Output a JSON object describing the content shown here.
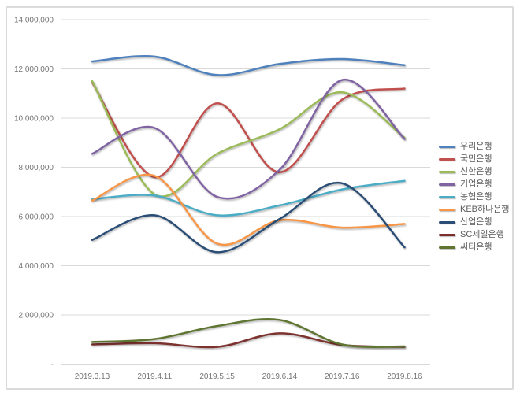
{
  "frame": {
    "border_color": "#dbdbdb",
    "background": "#ffffff"
  },
  "chart_data": {
    "type": "line",
    "smooth": true,
    "grid": true,
    "legend_position": "right",
    "x_labels": [
      "2019.3.13",
      "2019.4.11",
      "2019.5.15",
      "2019.6.14",
      "2019.7.16",
      "2019.8.16"
    ],
    "y_axis": {
      "min": 0,
      "max": 14000000,
      "step": 2000000,
      "tick_labels": [
        "14,000,000",
        "12,000,000",
        "10,000,000",
        "8,000,000",
        "6,000,000",
        "4,000,000",
        "2,000,000",
        "-"
      ]
    },
    "series": [
      {
        "name": "우리은행",
        "color": "#4F81BD",
        "values": [
          12300000,
          12500000,
          11750000,
          12200000,
          12400000,
          12150000
        ]
      },
      {
        "name": "국민은행",
        "color": "#C0504D",
        "values": [
          11450000,
          7600000,
          10600000,
          7800000,
          10750000,
          11200000
        ]
      },
      {
        "name": "신한은행",
        "color": "#9BBB59",
        "values": [
          11500000,
          6900000,
          8550000,
          9550000,
          11050000,
          9200000
        ]
      },
      {
        "name": "기업은행",
        "color": "#8064A2",
        "values": [
          8550000,
          9600000,
          6800000,
          7900000,
          11550000,
          9150000
        ]
      },
      {
        "name": "농협은행",
        "color": "#4BACC6",
        "values": [
          6700000,
          6850000,
          6050000,
          6450000,
          7100000,
          7450000
        ]
      },
      {
        "name": "KEB하나은행",
        "color": "#F79646",
        "values": [
          6650000,
          7650000,
          4900000,
          5850000,
          5550000,
          5700000
        ]
      },
      {
        "name": "산업은행",
        "color": "#2C4D75",
        "values": [
          5050000,
          6050000,
          4550000,
          5900000,
          7350000,
          4750000
        ]
      },
      {
        "name": "SC제일은행",
        "color": "#7B302D",
        "values": [
          800000,
          850000,
          700000,
          1250000,
          780000,
          700000
        ]
      },
      {
        "name": "씨티은행",
        "color": "#5F7530",
        "values": [
          900000,
          1020000,
          1550000,
          1800000,
          800000,
          720000
        ]
      }
    ]
  }
}
